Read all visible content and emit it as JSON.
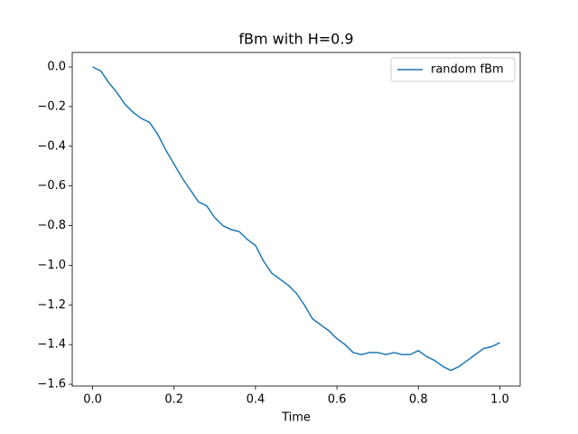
{
  "chart_data": {
    "type": "line",
    "title": "fBm with H=0.9",
    "xlabel": "Time",
    "x": [
      0,
      0.02,
      0.04,
      0.06,
      0.08,
      0.1,
      0.12,
      0.13,
      0.14,
      0.16,
      0.18,
      0.2,
      0.22,
      0.24,
      0.26,
      0.28,
      0.3,
      0.32,
      0.34,
      0.36,
      0.38,
      0.4,
      0.42,
      0.44,
      0.46,
      0.48,
      0.5,
      0.52,
      0.54,
      0.56,
      0.58,
      0.6,
      0.62,
      0.64,
      0.66,
      0.68,
      0.7,
      0.72,
      0.74,
      0.76,
      0.78,
      0.8,
      0.82,
      0.84,
      0.86,
      0.88,
      0.9,
      0.92,
      0.94,
      0.96,
      0.98,
      1.0
    ],
    "series": [
      {
        "name": "random fBm",
        "color": "#1f77b4",
        "values": [
          0,
          -0.02,
          -0.08,
          -0.13,
          -0.19,
          -0.23,
          -0.26,
          -0.27,
          -0.28,
          -0.34,
          -0.42,
          -0.49,
          -0.56,
          -0.62,
          -0.68,
          -0.7,
          -0.76,
          -0.8,
          -0.82,
          -0.83,
          -0.87,
          -0.9,
          -0.98,
          -1.04,
          -1.07,
          -1.1,
          -1.14,
          -1.2,
          -1.27,
          -1.3,
          -1.33,
          -1.37,
          -1.4,
          -1.44,
          -1.45,
          -1.44,
          -1.44,
          -1.45,
          -1.44,
          -1.45,
          -1.45,
          -1.43,
          -1.46,
          -1.48,
          -1.51,
          -1.53,
          -1.51,
          -1.48,
          -1.45,
          -1.42,
          -1.41,
          -1.39
        ]
      }
    ],
    "xlim": [
      -0.05,
      1.05
    ],
    "ylim": [
      -1.609,
      0.073
    ],
    "xticks": [
      {
        "value": 0,
        "label": "0.0"
      },
      0.2,
      0.4,
      0.6,
      0.8,
      {
        "value": 1,
        "label": "1.0"
      }
    ],
    "yticks": [
      {
        "value": 0,
        "label": "0.0"
      },
      {
        "value": -0.2,
        "label": "−0.2"
      },
      {
        "value": -0.4,
        "label": "−0.4"
      },
      {
        "value": -0.6,
        "label": "−0.6"
      },
      {
        "value": -0.8,
        "label": "−0.8"
      },
      {
        "value": -1.0,
        "label": "−1.0"
      },
      {
        "value": -1.2,
        "label": "−1.2"
      },
      {
        "value": -1.4,
        "label": "−1.4"
      },
      {
        "value": -1.6,
        "label": "−1.6"
      }
    ],
    "legend": "upper right",
    "grid": false
  }
}
